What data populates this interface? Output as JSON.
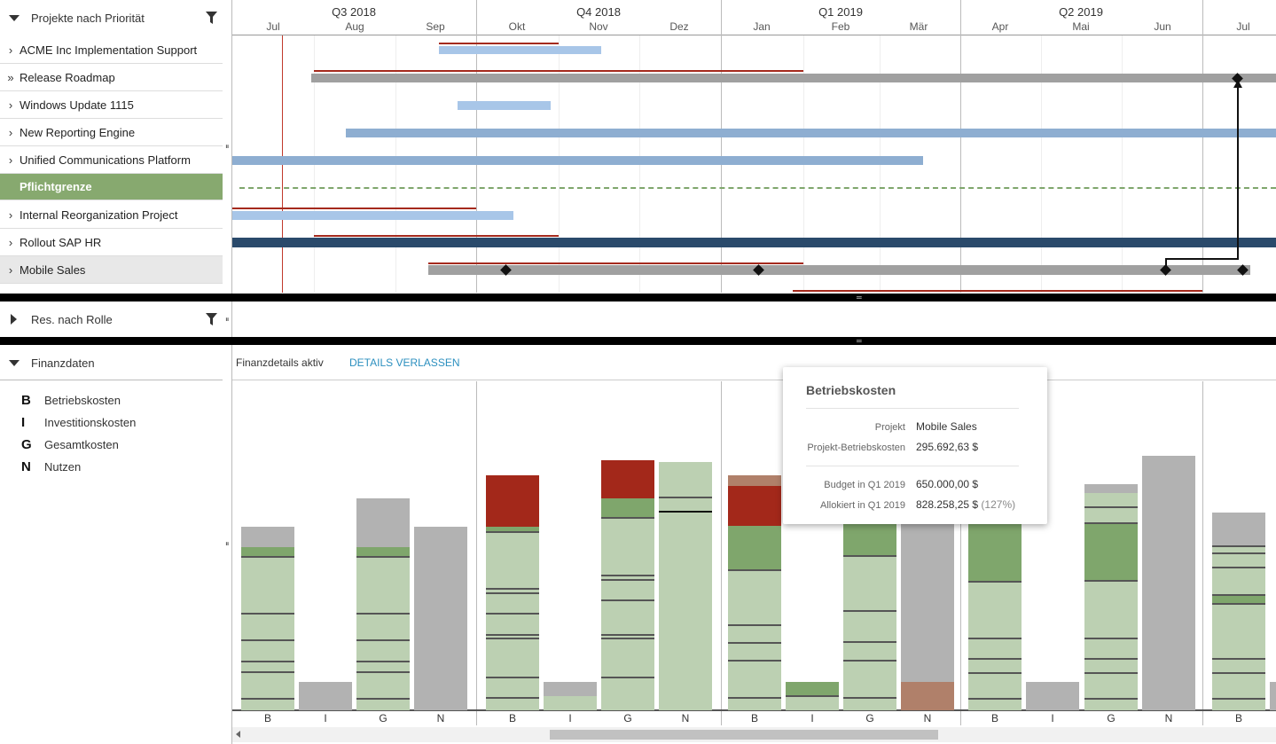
{
  "left_header": {
    "title": "Projekte nach Priorität"
  },
  "projects": [
    {
      "name": "ACME Inc Implementation Support",
      "chevron": "›"
    },
    {
      "name": "Release Roadmap",
      "chevron": "»"
    },
    {
      "name": "Windows Update 1115",
      "chevron": "›"
    },
    {
      "name": "New Reporting Engine",
      "chevron": "›"
    },
    {
      "name": "Unified Communications Platform",
      "chevron": "›"
    },
    {
      "name": "Pflichtgrenze",
      "chevron": ""
    },
    {
      "name": "Internal Reorganization Project",
      "chevron": "›"
    },
    {
      "name": "Rollout SAP HR",
      "chevron": "›"
    },
    {
      "name": "Mobile Sales",
      "chevron": "›"
    }
  ],
  "timeline": {
    "quarters": [
      "Q3 2018",
      "Q4 2018",
      "Q1 2019",
      "Q2 2019"
    ],
    "months": [
      "Jul",
      "Aug",
      "Sep",
      "Okt",
      "Nov",
      "Dez",
      "Jan",
      "Feb",
      "Mär",
      "Apr",
      "Mai",
      "Jun",
      "Jul"
    ]
  },
  "res_section": {
    "title": "Res. nach Rolle"
  },
  "fin_section": {
    "title": "Finanzdaten",
    "status": "Finanzdetails aktiv",
    "leave_label": "DETAILS VERLASSEN",
    "legend": [
      {
        "key": "B",
        "label": "Betriebskosten"
      },
      {
        "key": "I",
        "label": "Investitionskosten"
      },
      {
        "key": "G",
        "label": "Gesamtkosten"
      },
      {
        "key": "N",
        "label": "Nutzen"
      }
    ],
    "bar_labels": [
      "B",
      "I",
      "G",
      "N",
      "B",
      "I",
      "G",
      "N",
      "B",
      "I",
      "G",
      "N",
      "B",
      "I",
      "G",
      "N",
      "B"
    ]
  },
  "tooltip": {
    "title": "Betriebskosten",
    "project_label": "Projekt",
    "project_value": "Mobile Sales",
    "opex_label": "Projekt-Betriebskosten",
    "opex_value": "295.692,63 $",
    "budget_label": "Budget in Q1 2019",
    "budget_value": "650.000,00 $",
    "alloc_label": "Allokiert in Q1 2019",
    "alloc_value": "828.258,25 $",
    "alloc_pct": "(127%)"
  },
  "colors": {
    "bar_blue": "#8eaed1",
    "bar_lightblue": "#a8c6e8",
    "bar_gray": "#a0a0a0",
    "bar_navy": "#2a4a6b",
    "deadline": "#a52a1d",
    "green_light": "#bcd0b2",
    "green": "#7fa66c",
    "red": "#a3281a",
    "gray": "#b2b2b2",
    "brown": "#b0806a"
  }
}
